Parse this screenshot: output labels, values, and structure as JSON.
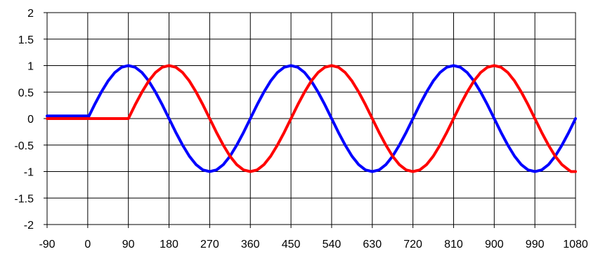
{
  "chart_data": {
    "type": "line",
    "title": "",
    "xlabel": "",
    "ylabel": "",
    "xlim": [
      -90,
      1080
    ],
    "ylim": [
      -2,
      2
    ],
    "grid": true,
    "legend": "none",
    "x_ticks": [
      -90,
      0,
      90,
      180,
      270,
      360,
      450,
      540,
      630,
      720,
      810,
      900,
      990,
      1080
    ],
    "x_tick_labels": [
      "-90",
      "0",
      "90",
      "180",
      "270",
      "360",
      "450",
      "540",
      "630",
      "720",
      "810",
      "900",
      "990",
      "1080"
    ],
    "y_ticks": [
      2,
      1.5,
      1,
      0.5,
      0,
      -0.5,
      -1,
      -1.5,
      -2
    ],
    "y_tick_labels": [
      "2",
      "1.5",
      "1",
      "0.5",
      "0",
      "-0.5",
      "-1",
      "-1.5",
      "-2"
    ],
    "series": [
      {
        "color": "#0000ff",
        "points": [
          [
            -90,
            0.05
          ],
          [
            0,
            0.05
          ],
          [
            0,
            0
          ],
          [
            15,
            0.26
          ],
          [
            30,
            0.5
          ],
          [
            45,
            0.71
          ],
          [
            60,
            0.87
          ],
          [
            75,
            0.97
          ],
          [
            90,
            1
          ],
          [
            105,
            0.97
          ],
          [
            120,
            0.87
          ],
          [
            135,
            0.71
          ],
          [
            150,
            0.5
          ],
          [
            165,
            0.26
          ],
          [
            180,
            0
          ],
          [
            195,
            -0.26
          ],
          [
            210,
            -0.5
          ],
          [
            225,
            -0.71
          ],
          [
            240,
            -0.87
          ],
          [
            255,
            -0.97
          ],
          [
            270,
            -1
          ],
          [
            285,
            -0.97
          ],
          [
            300,
            -0.87
          ],
          [
            315,
            -0.71
          ],
          [
            330,
            -0.5
          ],
          [
            345,
            -0.26
          ],
          [
            360,
            0
          ],
          [
            375,
            0.26
          ],
          [
            390,
            0.5
          ],
          [
            405,
            0.71
          ],
          [
            420,
            0.87
          ],
          [
            435,
            0.97
          ],
          [
            450,
            1
          ],
          [
            465,
            0.97
          ],
          [
            480,
            0.87
          ],
          [
            495,
            0.71
          ],
          [
            510,
            0.5
          ],
          [
            525,
            0.26
          ],
          [
            540,
            0
          ],
          [
            555,
            -0.26
          ],
          [
            570,
            -0.5
          ],
          [
            585,
            -0.71
          ],
          [
            600,
            -0.87
          ],
          [
            615,
            -0.97
          ],
          [
            630,
            -1
          ],
          [
            645,
            -0.97
          ],
          [
            660,
            -0.87
          ],
          [
            675,
            -0.71
          ],
          [
            690,
            -0.5
          ],
          [
            705,
            -0.26
          ],
          [
            720,
            0
          ],
          [
            735,
            0.26
          ],
          [
            750,
            0.5
          ],
          [
            765,
            0.71
          ],
          [
            780,
            0.87
          ],
          [
            795,
            0.97
          ],
          [
            810,
            1
          ],
          [
            825,
            0.97
          ],
          [
            840,
            0.87
          ],
          [
            855,
            0.71
          ],
          [
            870,
            0.5
          ],
          [
            885,
            0.26
          ],
          [
            900,
            0
          ],
          [
            915,
            -0.26
          ],
          [
            930,
            -0.5
          ],
          [
            945,
            -0.71
          ],
          [
            960,
            -0.87
          ],
          [
            975,
            -0.97
          ],
          [
            990,
            -1
          ],
          [
            1005,
            -0.97
          ],
          [
            1020,
            -0.87
          ],
          [
            1035,
            -0.71
          ],
          [
            1050,
            -0.5
          ],
          [
            1065,
            -0.26
          ],
          [
            1080,
            0
          ]
        ]
      },
      {
        "color": "#ff0000",
        "points": [
          [
            -90,
            0
          ],
          [
            90,
            0
          ],
          [
            105,
            0.26
          ],
          [
            120,
            0.5
          ],
          [
            135,
            0.71
          ],
          [
            150,
            0.87
          ],
          [
            165,
            0.97
          ],
          [
            180,
            1
          ],
          [
            195,
            0.97
          ],
          [
            210,
            0.87
          ],
          [
            225,
            0.71
          ],
          [
            240,
            0.5
          ],
          [
            255,
            0.26
          ],
          [
            270,
            0
          ],
          [
            285,
            -0.26
          ],
          [
            300,
            -0.5
          ],
          [
            315,
            -0.71
          ],
          [
            330,
            -0.87
          ],
          [
            345,
            -0.97
          ],
          [
            360,
            -1
          ],
          [
            375,
            -0.97
          ],
          [
            390,
            -0.87
          ],
          [
            405,
            -0.71
          ],
          [
            420,
            -0.5
          ],
          [
            435,
            -0.26
          ],
          [
            450,
            0
          ],
          [
            465,
            0.26
          ],
          [
            480,
            0.5
          ],
          [
            495,
            0.71
          ],
          [
            510,
            0.87
          ],
          [
            525,
            0.97
          ],
          [
            540,
            1
          ],
          [
            555,
            0.97
          ],
          [
            570,
            0.87
          ],
          [
            585,
            0.71
          ],
          [
            600,
            0.5
          ],
          [
            615,
            0.26
          ],
          [
            630,
            0
          ],
          [
            645,
            -0.26
          ],
          [
            660,
            -0.5
          ],
          [
            675,
            -0.71
          ],
          [
            690,
            -0.87
          ],
          [
            705,
            -0.97
          ],
          [
            720,
            -1
          ],
          [
            735,
            -0.97
          ],
          [
            750,
            -0.87
          ],
          [
            765,
            -0.71
          ],
          [
            780,
            -0.5
          ],
          [
            795,
            -0.26
          ],
          [
            810,
            0
          ],
          [
            825,
            0.26
          ],
          [
            840,
            0.5
          ],
          [
            855,
            0.71
          ],
          [
            870,
            0.87
          ],
          [
            885,
            0.97
          ],
          [
            900,
            1
          ],
          [
            915,
            0.97
          ],
          [
            930,
            0.87
          ],
          [
            945,
            0.71
          ],
          [
            960,
            0.5
          ],
          [
            975,
            0.26
          ],
          [
            990,
            0
          ],
          [
            1005,
            -0.26
          ],
          [
            1020,
            -0.5
          ],
          [
            1035,
            -0.71
          ],
          [
            1050,
            -0.87
          ],
          [
            1065,
            -0.97
          ],
          [
            1070,
            -1
          ],
          [
            1080,
            -1
          ]
        ]
      }
    ]
  }
}
